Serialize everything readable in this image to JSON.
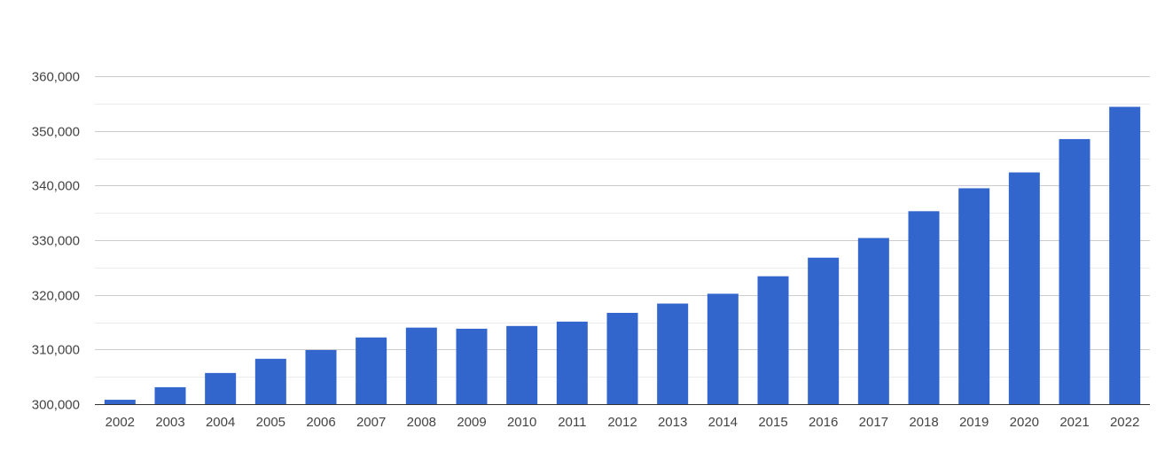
{
  "chart_data": {
    "type": "bar",
    "title": "",
    "xlabel": "",
    "ylabel": "",
    "categories": [
      "2002",
      "2003",
      "2004",
      "2005",
      "2006",
      "2007",
      "2008",
      "2009",
      "2010",
      "2011",
      "2012",
      "2013",
      "2014",
      "2015",
      "2016",
      "2017",
      "2018",
      "2019",
      "2020",
      "2021",
      "2022"
    ],
    "values": [
      300800,
      303100,
      305700,
      308300,
      309900,
      312200,
      314000,
      313800,
      314300,
      315100,
      316700,
      318400,
      320200,
      323400,
      326800,
      330400,
      335300,
      339500,
      342400,
      348500,
      354400
    ],
    "ylim": [
      300000,
      360000
    ],
    "y_ticks": [
      300000,
      310000,
      320000,
      330000,
      340000,
      350000,
      360000
    ],
    "y_tick_labels": [
      "300,000",
      "310,000",
      "320,000",
      "330,000",
      "340,000",
      "350,000",
      "360,000"
    ],
    "grid": true,
    "minor_grid": true,
    "legend": "none",
    "colors": {
      "bar": "#3366cc",
      "major_grid": "#cccccc",
      "minor_grid": "#ebebeb",
      "axis": "#333333",
      "text": "#444444"
    }
  }
}
